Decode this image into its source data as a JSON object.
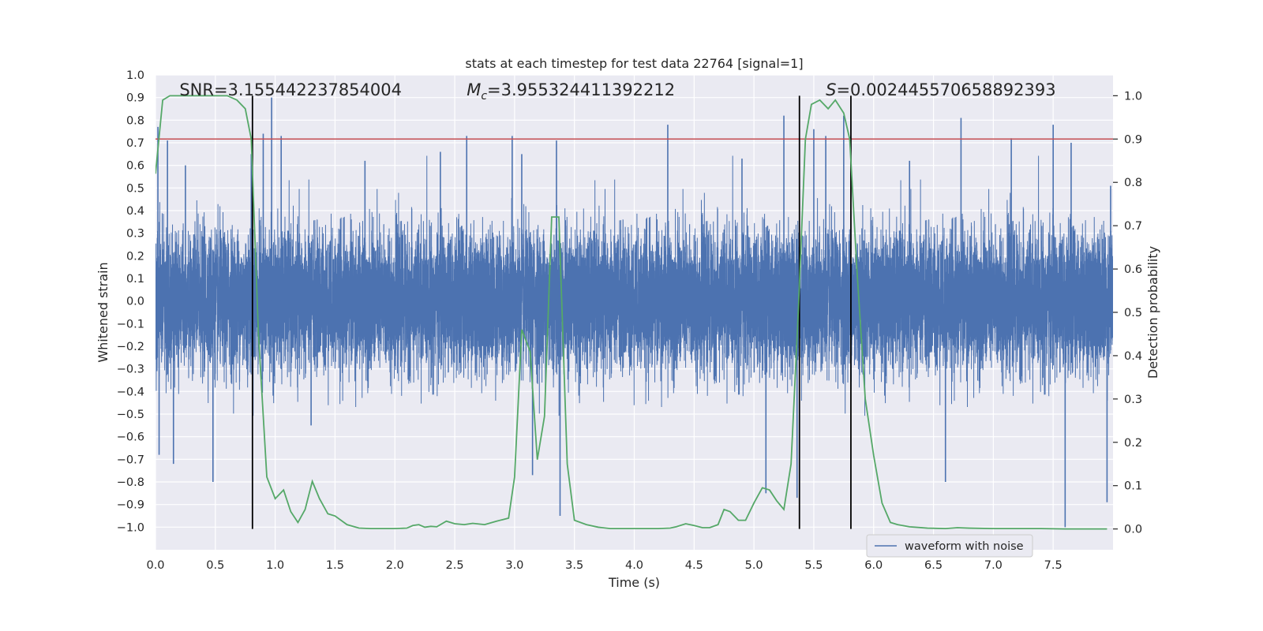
{
  "chart_data": {
    "type": "line",
    "title": "stats at each timestep for test data 22764 [signal=1]",
    "xlabel": "Time (s)",
    "ylabel": "Whitened strain",
    "y2label": "Detection probability",
    "xlim": [
      0.0,
      8.0
    ],
    "ylim": [
      -1.1,
      1.0
    ],
    "y2lim": [
      -0.048,
      1.048
    ],
    "x_ticks": [
      0.0,
      0.5,
      1.0,
      1.5,
      2.0,
      2.5,
      3.0,
      3.5,
      4.0,
      4.5,
      5.0,
      5.5,
      6.0,
      6.5,
      7.0,
      7.5
    ],
    "x_tick_labels": [
      "0.0",
      "0.5",
      "1.0",
      "1.5",
      "2.0",
      "2.5",
      "3.0",
      "3.5",
      "4.0",
      "4.5",
      "5.0",
      "5.5",
      "6.0",
      "6.5",
      "7.0",
      "7.5"
    ],
    "y_ticks": [
      1.0,
      0.9,
      0.8,
      0.7,
      0.6,
      0.5,
      0.4,
      0.3,
      0.2,
      0.1,
      0.0,
      -0.1,
      -0.2,
      -0.3,
      -0.4,
      -0.5,
      -0.6,
      -0.7,
      -0.8,
      -0.9,
      -1.0
    ],
    "y_tick_labels": [
      "1.0",
      "0.9",
      "0.8",
      "0.7",
      "0.6",
      "0.5",
      "0.4",
      "0.3",
      "0.2",
      "0.1",
      "0.0",
      "−0.1",
      "−0.2",
      "−0.3",
      "−0.4",
      "−0.5",
      "−0.6",
      "−0.7",
      "−0.8",
      "−0.9",
      "−1.0"
    ],
    "y2_ticks": [
      1.0,
      0.9,
      0.8,
      0.7,
      0.6,
      0.5,
      0.4,
      0.3,
      0.2,
      0.1,
      0.0
    ],
    "y2_tick_labels": [
      "1.0",
      "0.9",
      "0.8",
      "0.7",
      "0.6",
      "0.5",
      "0.4",
      "0.3",
      "0.2",
      "0.1",
      "0.0"
    ],
    "waveform": {
      "name": "waveform with noise",
      "color": "#4c72b0",
      "sample_rate_hz": 2048,
      "noise_std": 0.15,
      "typical_range": [
        -0.45,
        0.5
      ],
      "peaks": [
        {
          "t": 0.02,
          "v": 0.77
        },
        {
          "t": 0.03,
          "v": -0.68
        },
        {
          "t": 0.1,
          "v": 0.71
        },
        {
          "t": 0.15,
          "v": -0.72
        },
        {
          "t": 0.25,
          "v": 0.6
        },
        {
          "t": 0.48,
          "v": -0.8
        },
        {
          "t": 0.8,
          "v": 0.65
        },
        {
          "t": 0.9,
          "v": 0.74
        },
        {
          "t": 0.97,
          "v": 0.9
        },
        {
          "t": 1.05,
          "v": 0.73
        },
        {
          "t": 1.3,
          "v": -0.55
        },
        {
          "t": 1.75,
          "v": 0.62
        },
        {
          "t": 2.38,
          "v": 0.66
        },
        {
          "t": 2.6,
          "v": 0.73
        },
        {
          "t": 2.98,
          "v": 0.73
        },
        {
          "t": 3.06,
          "v": 0.65
        },
        {
          "t": 3.15,
          "v": -0.77
        },
        {
          "t": 3.35,
          "v": 0.71
        },
        {
          "t": 3.38,
          "v": -0.95
        },
        {
          "t": 4.28,
          "v": 0.78
        },
        {
          "t": 4.9,
          "v": 0.63
        },
        {
          "t": 5.1,
          "v": -0.85
        },
        {
          "t": 5.25,
          "v": 0.82
        },
        {
          "t": 5.36,
          "v": -0.87
        },
        {
          "t": 5.5,
          "v": 0.76
        },
        {
          "t": 5.6,
          "v": 0.73
        },
        {
          "t": 5.75,
          "v": 0.82
        },
        {
          "t": 6.3,
          "v": 0.62
        },
        {
          "t": 6.6,
          "v": -0.8
        },
        {
          "t": 6.73,
          "v": 0.81
        },
        {
          "t": 7.15,
          "v": 0.72
        },
        {
          "t": 7.5,
          "v": 0.78
        },
        {
          "t": 7.6,
          "v": -1.0
        },
        {
          "t": 7.65,
          "v": 0.7
        },
        {
          "t": 7.95,
          "v": -0.89
        },
        {
          "t": 7.98,
          "v": 0.51
        }
      ]
    },
    "threshold": {
      "value": 0.9,
      "color": "#c44e52",
      "axis": "y2"
    },
    "probability": {
      "name": "detection probability",
      "color": "#55a868",
      "axis": "y2",
      "x": [
        0.0,
        0.06,
        0.12,
        0.2,
        0.3,
        0.4,
        0.5,
        0.6,
        0.68,
        0.75,
        0.8,
        0.86,
        0.93,
        1.0,
        1.07,
        1.13,
        1.19,
        1.25,
        1.31,
        1.37,
        1.44,
        1.5,
        1.6,
        1.7,
        1.8,
        1.9,
        2.0,
        2.1,
        2.15,
        2.2,
        2.25,
        2.3,
        2.35,
        2.43,
        2.5,
        2.58,
        2.65,
        2.75,
        2.85,
        2.95,
        3.0,
        3.06,
        3.13,
        3.19,
        3.25,
        3.31,
        3.37,
        3.44,
        3.5,
        3.6,
        3.7,
        3.8,
        3.9,
        4.0,
        4.1,
        4.2,
        4.3,
        4.35,
        4.43,
        4.5,
        4.57,
        4.63,
        4.7,
        4.75,
        4.8,
        4.87,
        4.93,
        5.0,
        5.07,
        5.13,
        5.19,
        5.25,
        5.31,
        5.37,
        5.43,
        5.48,
        5.55,
        5.62,
        5.68,
        5.75,
        5.8,
        5.86,
        5.93,
        6.0,
        6.07,
        6.14,
        6.2,
        6.3,
        6.45,
        6.6,
        6.7,
        6.8,
        7.0,
        7.2,
        7.4,
        7.6,
        7.8,
        7.95
      ],
      "y": [
        0.82,
        0.99,
        1.0,
        1.0,
        1.0,
        1.0,
        1.0,
        1.0,
        0.99,
        0.97,
        0.9,
        0.45,
        0.12,
        0.07,
        0.09,
        0.04,
        0.015,
        0.045,
        0.11,
        0.07,
        0.035,
        0.03,
        0.01,
        0.002,
        0.001,
        0.001,
        0.001,
        0.002,
        0.008,
        0.01,
        0.004,
        0.006,
        0.005,
        0.018,
        0.012,
        0.01,
        0.013,
        0.01,
        0.018,
        0.025,
        0.12,
        0.46,
        0.41,
        0.16,
        0.26,
        0.72,
        0.72,
        0.15,
        0.02,
        0.01,
        0.004,
        0.001,
        0.001,
        0.001,
        0.001,
        0.001,
        0.002,
        0.005,
        0.012,
        0.008,
        0.003,
        0.003,
        0.01,
        0.045,
        0.04,
        0.02,
        0.02,
        0.06,
        0.095,
        0.09,
        0.065,
        0.045,
        0.15,
        0.5,
        0.9,
        0.98,
        0.99,
        0.97,
        0.99,
        0.96,
        0.9,
        0.6,
        0.3,
        0.17,
        0.06,
        0.015,
        0.01,
        0.005,
        0.002,
        0.001,
        0.003,
        0.002,
        0.001,
        0.001,
        0.001,
        0.0,
        0.0,
        0.0
      ]
    },
    "vlines": [
      0.81,
      5.38,
      5.81
    ],
    "annotations": [
      {
        "text": "SNR=3.155442237854004",
        "x": 0.2
      },
      {
        "text": "Mc=3.955324411392212",
        "x": 2.6,
        "math_symbol": "M",
        "math_subscript": "c",
        "value_text": "=3.955324411392212"
      },
      {
        "text": "S=0.0024455706588923​93",
        "x": 5.6,
        "math_symbol": "S",
        "value_text": "=0.002445570658892393"
      }
    ],
    "legend": {
      "label": "waveform with noise",
      "location": "lower-right"
    },
    "grid": true
  }
}
